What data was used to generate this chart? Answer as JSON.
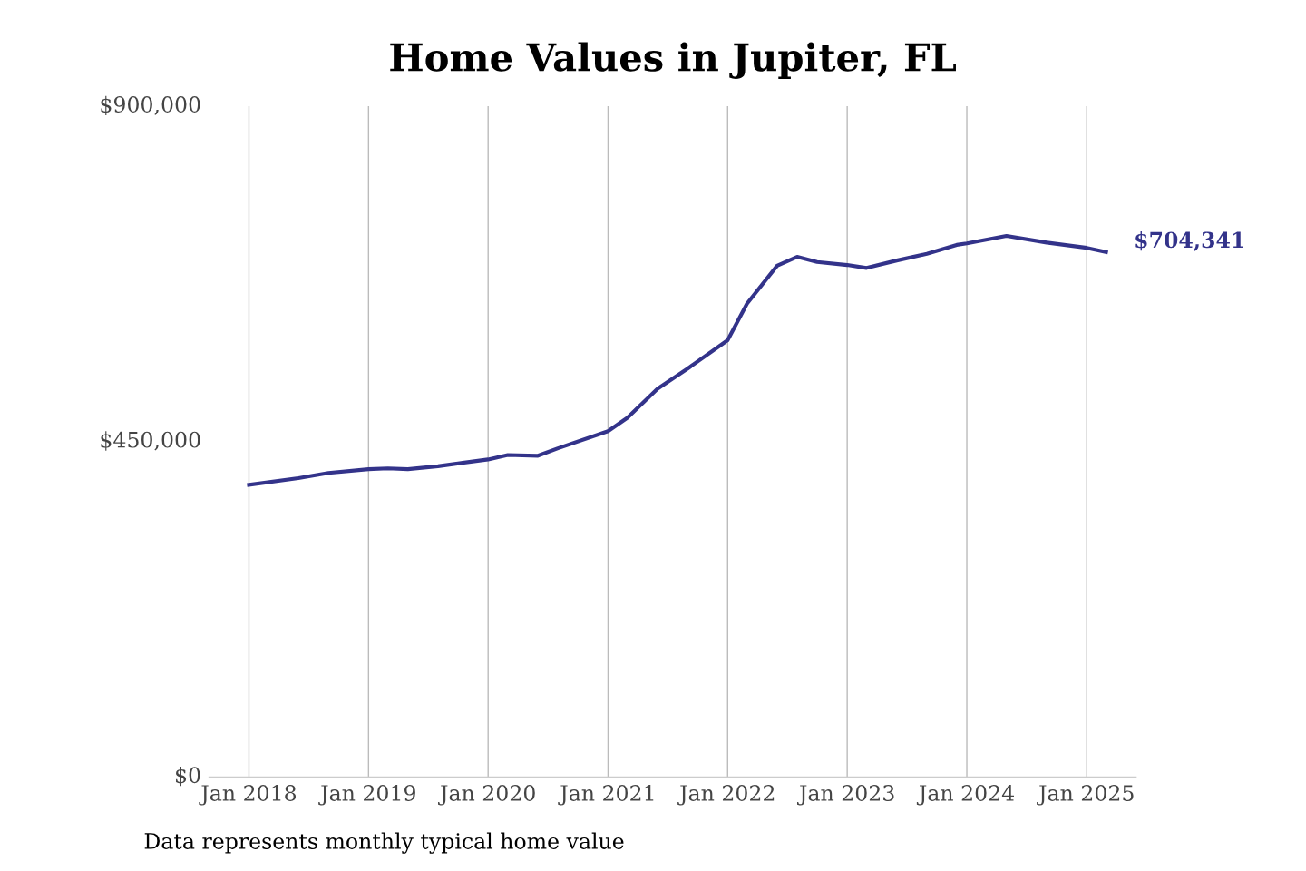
{
  "chart_data": {
    "type": "line",
    "title": "Home Values in Jupiter, FL",
    "x": [
      "2018-01",
      "2018-06",
      "2018-09",
      "2019-01",
      "2019-03",
      "2019-05",
      "2019-08",
      "2020-01",
      "2020-03",
      "2020-06",
      "2020-08",
      "2021-01",
      "2021-03",
      "2021-06",
      "2021-09",
      "2022-01",
      "2022-03",
      "2022-06",
      "2022-08",
      "2022-10",
      "2023-01",
      "2023-03",
      "2023-06",
      "2023-09",
      "2023-12",
      "2024-01",
      "2024-05",
      "2024-09",
      "2025-01",
      "2025-03"
    ],
    "series": [
      {
        "color": "#33338a",
        "values": [
          392000,
          401000,
          408000,
          413000,
          414000,
          413000,
          417000,
          426000,
          432000,
          431000,
          441000,
          464000,
          482000,
          521000,
          548000,
          586000,
          635000,
          686000,
          698000,
          691000,
          687000,
          683000,
          693000,
          702000,
          714000,
          716000,
          726000,
          717000,
          710000,
          704341
        ]
      }
    ],
    "xticks": [
      {
        "value": "2018-01",
        "label": "Jan 2018"
      },
      {
        "value": "2019-01",
        "label": "Jan 2019"
      },
      {
        "value": "2020-01",
        "label": "Jan 2020"
      },
      {
        "value": "2021-01",
        "label": "Jan 2021"
      },
      {
        "value": "2022-01",
        "label": "Jan 2022"
      },
      {
        "value": "2023-01",
        "label": "Jan 2023"
      },
      {
        "value": "2024-01",
        "label": "Jan 2024"
      },
      {
        "value": "2025-01",
        "label": "Jan 2025"
      }
    ],
    "xlim": [
      "2017-09",
      "2025-06"
    ],
    "ylim": [
      0,
      900000
    ],
    "yticks": [
      {
        "value": 0,
        "label": "$0"
      },
      {
        "value": 450000,
        "label": "$450,000"
      },
      {
        "value": 900000,
        "label": "$900,000"
      }
    ],
    "grid": "x",
    "legend": false,
    "marker": "none",
    "line_style": "solid",
    "annotations": [
      {
        "text": "$704,341",
        "x": "2025-03",
        "y": 704341
      },
      "Data represents monthly typical home value"
    ]
  }
}
